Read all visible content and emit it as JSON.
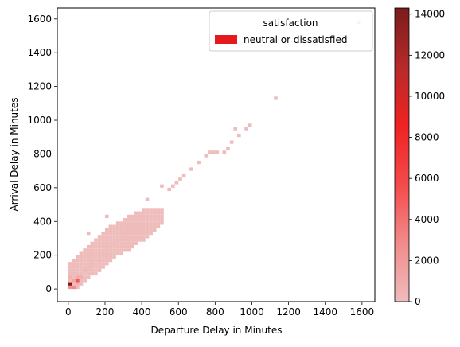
{
  "chart_data": {
    "type": "heatmap",
    "title": "",
    "xlabel": "Departure Delay in Minutes",
    "ylabel": "Arrival Delay in Minutes",
    "xlim": [
      -60,
      1670
    ],
    "ylim": [
      -75,
      1665
    ],
    "xticks": [
      0,
      200,
      400,
      600,
      800,
      1000,
      1200,
      1400,
      1600
    ],
    "yticks": [
      0,
      200,
      400,
      600,
      800,
      1000,
      1200,
      1400,
      1600
    ],
    "bin_size_minutes": 20,
    "legend": {
      "title": "satisfaction",
      "entries": [
        {
          "label": "neutral or dissatisfied",
          "color": "#e41a1c"
        }
      ],
      "placement": "upper right"
    },
    "colorbar": {
      "min": 0,
      "max": 14300,
      "ticks": [
        0,
        2000,
        4000,
        6000,
        8000,
        10000,
        12000,
        14000
      ],
      "colors": [
        "#efbcbc",
        "#f28b8b",
        "#f44a4a",
        "#f02222",
        "#b62a2a",
        "#7a1c1c"
      ]
    },
    "series": [
      {
        "name": "neutral or dissatisfied",
        "cells": [
          {
            "x": 0,
            "y": 20,
            "count": 14200
          },
          {
            "x": 40,
            "y": 40,
            "count": 5200
          },
          {
            "x": 20,
            "y": 0,
            "count": 2800
          },
          {
            "x": 0,
            "y": 0,
            "count": 2400
          },
          {
            "x": 20,
            "y": 40,
            "count": 1300
          },
          {
            "x": 40,
            "y": 60,
            "count": 900
          },
          {
            "x": 60,
            "y": 60,
            "count": 700
          },
          {
            "x": 0,
            "y": 60,
            "count": 500
          },
          {
            "x": 40,
            "y": 20,
            "count": 500
          },
          {
            "x": 80,
            "y": 100,
            "count": 300
          },
          {
            "x": 100,
            "y": 120,
            "count": 200
          },
          {
            "x": 120,
            "y": 140,
            "count": 150
          },
          {
            "x": 160,
            "y": 160,
            "count": 100
          },
          {
            "x": 180,
            "y": 200,
            "count": 80
          },
          {
            "x": 200,
            "y": 220,
            "count": 60
          },
          {
            "x": 220,
            "y": 240,
            "count": 50
          },
          {
            "x": 240,
            "y": 260,
            "count": 40
          },
          {
            "x": 260,
            "y": 280,
            "count": 30
          },
          {
            "x": 280,
            "y": 300,
            "count": 25
          },
          {
            "x": 300,
            "y": 320,
            "count": 20
          },
          {
            "x": 100,
            "y": 320,
            "count": 5
          },
          {
            "x": 200,
            "y": 420,
            "count": 5
          },
          {
            "x": 420,
            "y": 520,
            "count": 5
          },
          {
            "x": 500,
            "y": 600,
            "count": 5
          },
          {
            "x": 600,
            "y": 640,
            "count": 5
          },
          {
            "x": 760,
            "y": 800,
            "count": 5
          },
          {
            "x": 900,
            "y": 940,
            "count": 5
          },
          {
            "x": 1120,
            "y": 1120,
            "count": 5
          },
          {
            "x": 1570,
            "y": 1570,
            "count": 5
          }
        ]
      }
    ]
  }
}
